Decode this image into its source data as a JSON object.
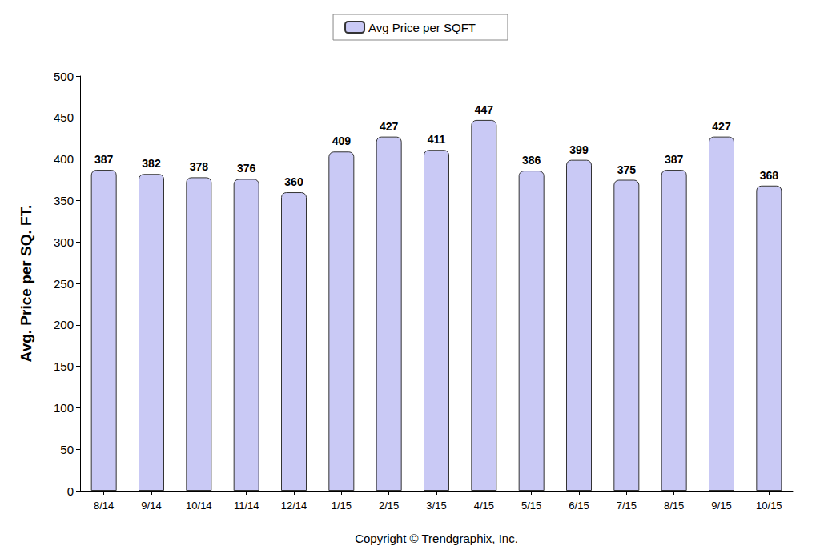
{
  "chart_data": {
    "type": "bar",
    "series": [
      {
        "name": "Avg Price per SQFT",
        "color": "#c9c9f5",
        "values": [
          387,
          382,
          378,
          376,
          360,
          409,
          427,
          411,
          447,
          386,
          399,
          375,
          387,
          427,
          368
        ]
      }
    ],
    "categories": [
      "8/14",
      "9/14",
      "10/14",
      "11/14",
      "12/14",
      "1/15",
      "2/15",
      "3/15",
      "4/15",
      "5/15",
      "6/15",
      "7/15",
      "8/15",
      "9/15",
      "10/15"
    ],
    "y_label": "Avg. Price per SQ. FT.",
    "x_label": "Copyright © Trendgraphix, Inc.",
    "ylim": [
      0,
      500
    ],
    "yticks": [
      0,
      50,
      100,
      150,
      200,
      250,
      300,
      350,
      400,
      450,
      500
    ],
    "grid": false,
    "legend": "top",
    "data_labels": true
  }
}
